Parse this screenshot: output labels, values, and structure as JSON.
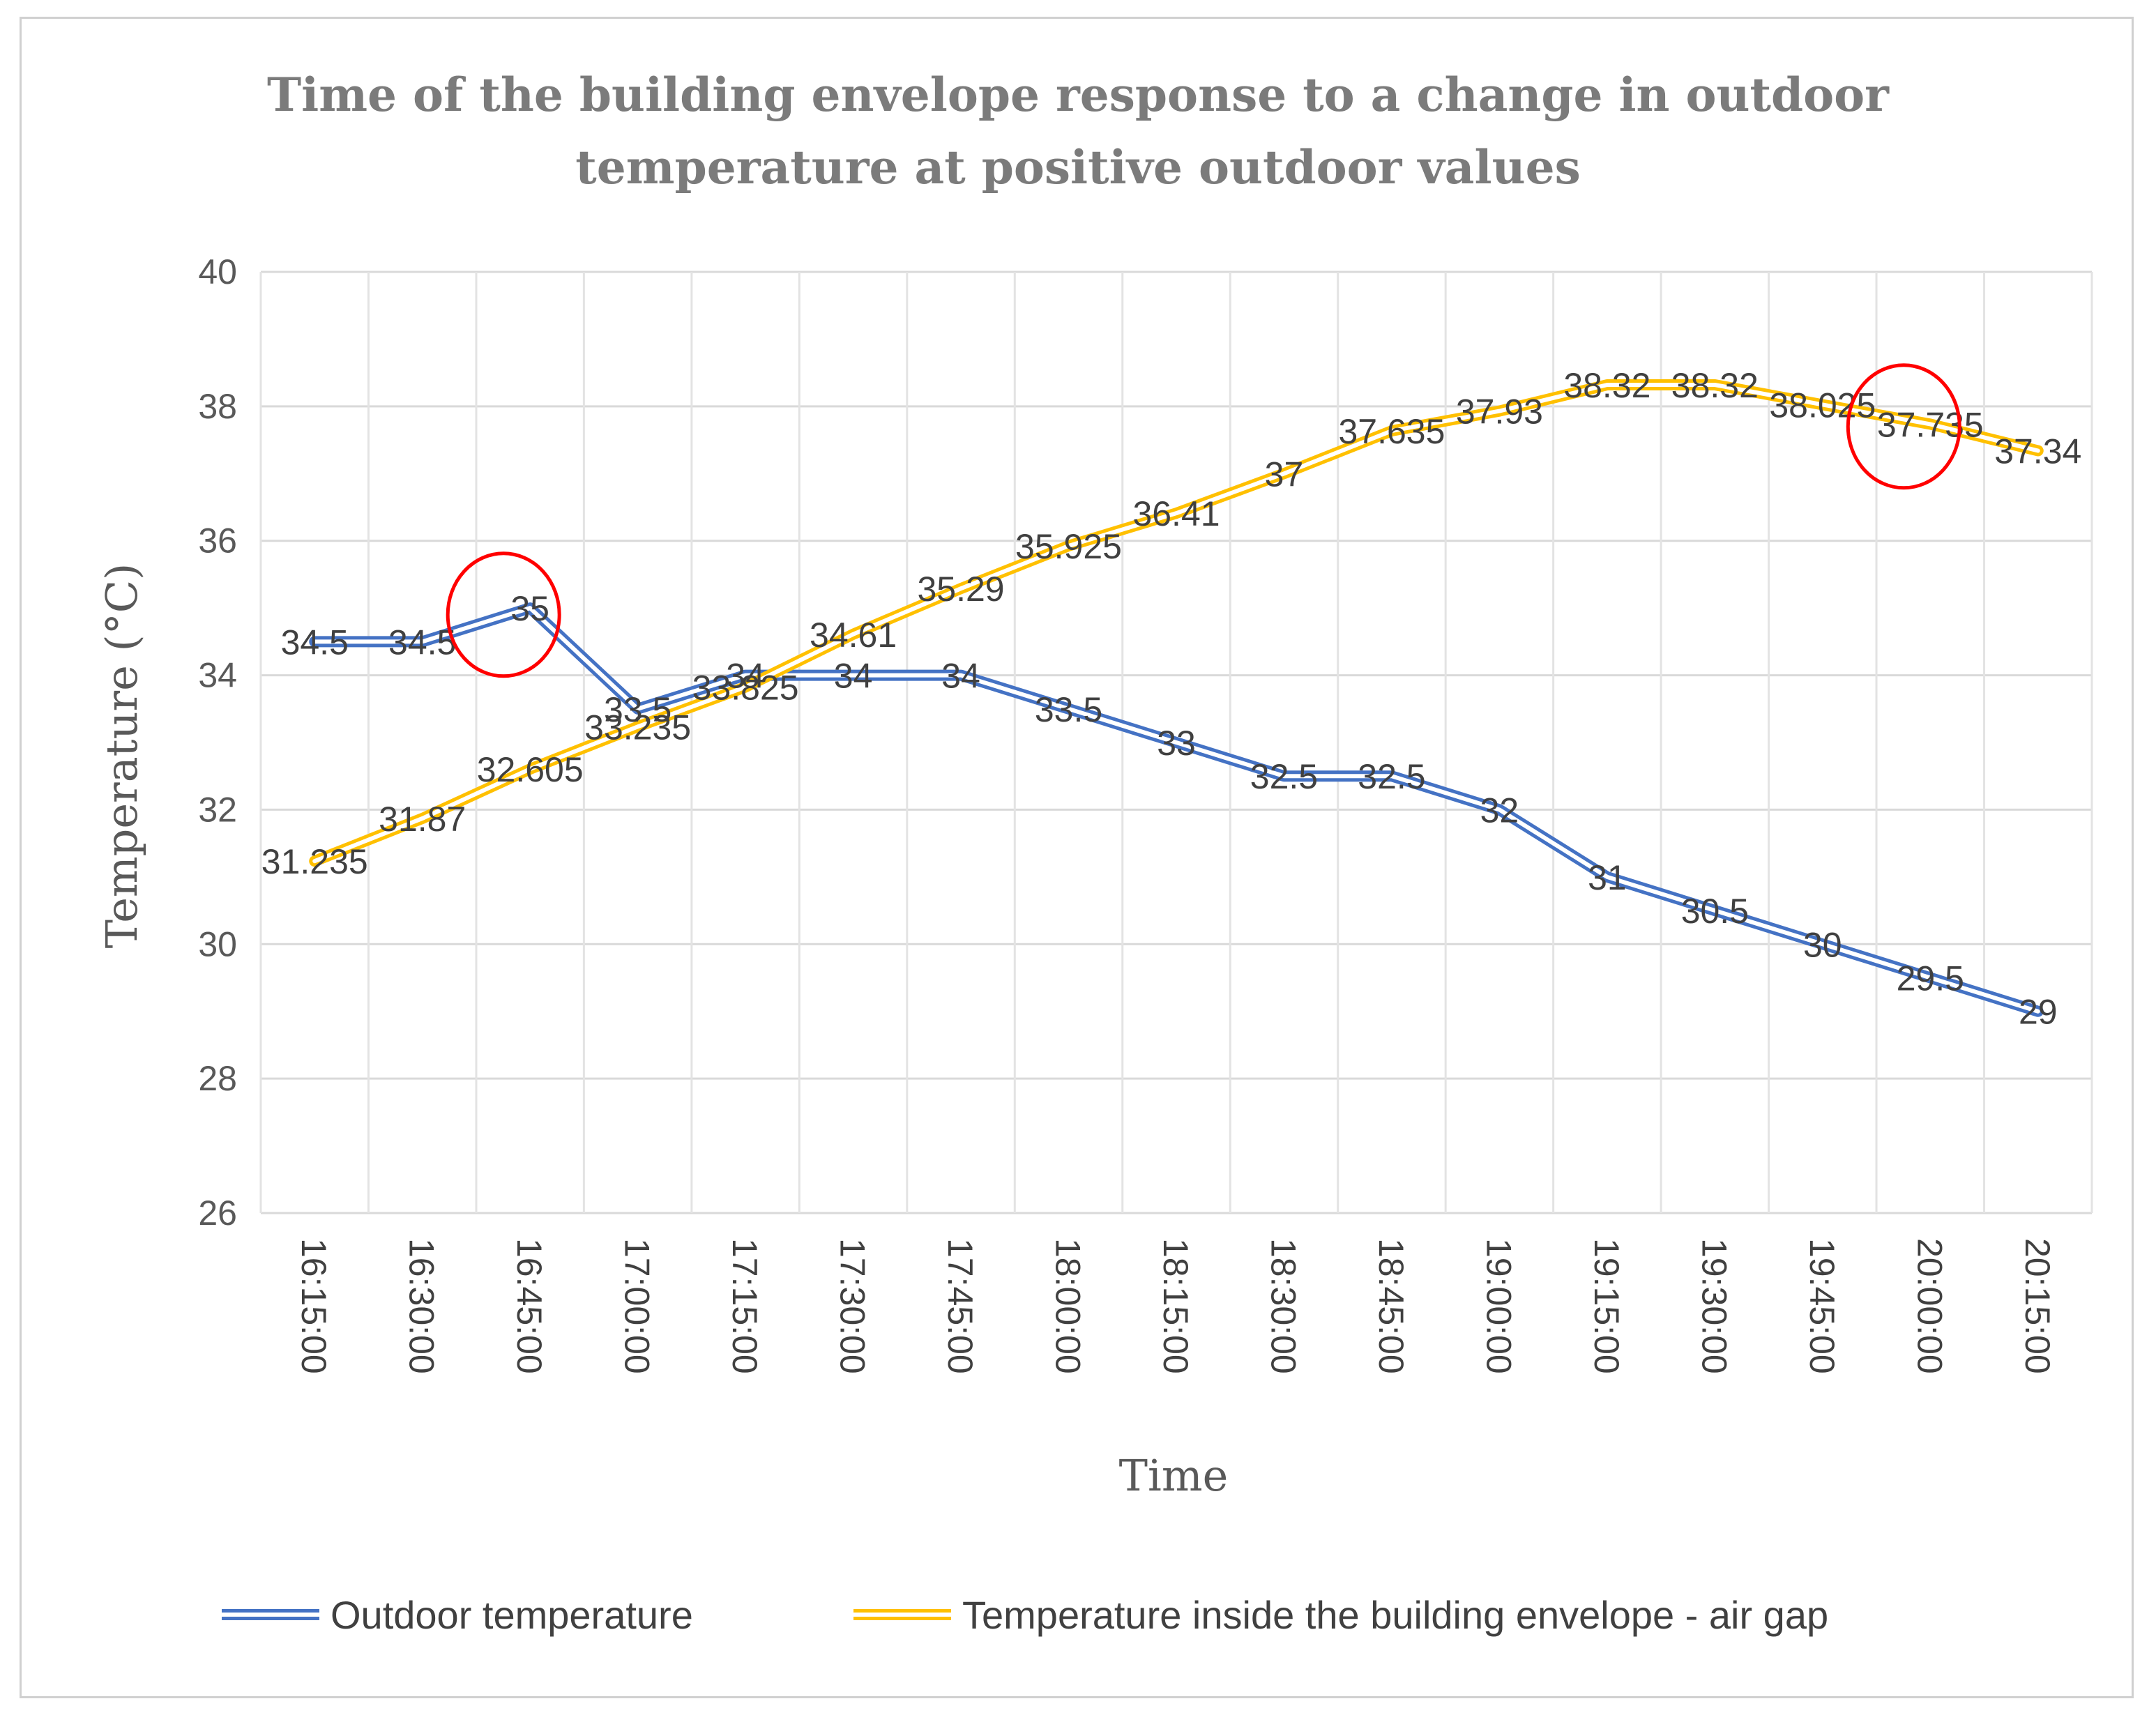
{
  "chart_data": {
    "type": "line",
    "title": "Time of the building envelope response to a change in outdoor temperature at positive outdoor values",
    "title_lines": [
      "Time of the building envelope response to a change in outdoor",
      "temperature at positive outdoor values"
    ],
    "xlabel": "Time",
    "ylabel": "Temperature (°C)",
    "ylim": [
      26,
      40
    ],
    "yticks": [
      "26",
      "28",
      "30",
      "32",
      "34",
      "36",
      "38",
      "40"
    ],
    "x": [
      "16:15:00",
      "16:30:00",
      "16:45:00",
      "17:00:00",
      "17:15:00",
      "17:30:00",
      "17:45:00",
      "18:00:00",
      "18:15:00",
      "18:30:00",
      "18:45:00",
      "19:00:00",
      "19:15:00",
      "19:30:00",
      "19:45:00",
      "20:00:00",
      "20:15:00"
    ],
    "grid": true,
    "legend_position": "bottom",
    "series": [
      {
        "name": "Outdoor temperature",
        "color": "#4472c4",
        "values": [
          34.5,
          34.5,
          35,
          33.5,
          34,
          34,
          34,
          33.5,
          33,
          32.5,
          32.5,
          32,
          31,
          30.5,
          30,
          29.5,
          29
        ],
        "labels": [
          "34.5",
          "34.5",
          "35",
          "33.5",
          "34",
          "34",
          "34",
          "33.5",
          "33",
          "32.5",
          "32.5",
          "32",
          "31",
          "30.5",
          "30",
          "29.5",
          "29"
        ]
      },
      {
        "name": "Temperature inside the building envelope - air gap",
        "color": "#ffc000",
        "values": [
          31.235,
          31.87,
          32.605,
          33.235,
          33.825,
          34.61,
          35.29,
          35.925,
          36.41,
          37,
          37.635,
          37.93,
          38.32,
          38.32,
          38.025,
          37.735,
          37.34
        ],
        "labels": [
          "31.235",
          "31.87",
          "32.605",
          "33.235",
          "33.825",
          "34.61",
          "35.29",
          "35.925",
          "36.41",
          "37",
          "37.635",
          "37.93",
          "38.32",
          "38.32",
          "38.025",
          "37.735",
          "37.34"
        ]
      }
    ],
    "annotations": [
      {
        "type": "circle",
        "color": "#ff0000",
        "series": "Outdoor temperature",
        "x": "16:45:00",
        "y": 34.9
      },
      {
        "type": "circle",
        "color": "#ff0000",
        "series": "Temperature inside the building envelope - air gap",
        "x": "20:00:00",
        "y": 37.7
      }
    ]
  }
}
